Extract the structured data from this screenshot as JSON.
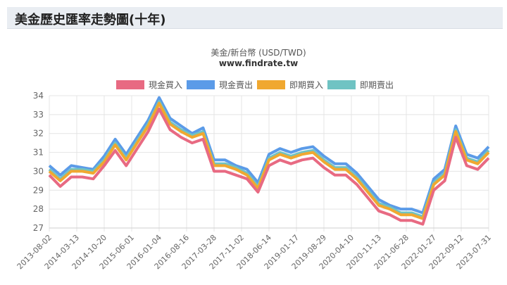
{
  "page": {
    "title": "美金歷史匯率走勢圖(十年)"
  },
  "chart_data": {
    "type": "line",
    "title": "美金/新台幣 (USD/TWD)",
    "subtitle": "www.findrate.tw",
    "ylim": [
      27,
      34
    ],
    "yticks": [
      27,
      28,
      29,
      30,
      31,
      32,
      33,
      34
    ],
    "x_tick_labels": [
      "2013-08-02",
      "2014-03-13",
      "2014-10-20",
      "2015-06-01",
      "2016-01-04",
      "2016-08-16",
      "2017-03-28",
      "2017-11-02",
      "2018-06-14",
      "2019-01-17",
      "2019-08-29",
      "2020-04-10",
      "2020-11-13",
      "2021-06-28",
      "2022-01-27",
      "2022-09-12",
      "2023-07-31"
    ],
    "x": [
      "2013-08",
      "2013-11",
      "2014-02",
      "2014-05",
      "2014-08",
      "2014-11",
      "2015-02",
      "2015-05",
      "2015-08",
      "2015-11",
      "2016-01",
      "2016-04",
      "2016-07",
      "2016-10",
      "2017-01",
      "2017-04",
      "2017-07",
      "2017-10",
      "2018-01",
      "2018-04",
      "2018-07",
      "2018-10",
      "2019-01",
      "2019-04",
      "2019-07",
      "2019-10",
      "2020-01",
      "2020-04",
      "2020-07",
      "2020-10",
      "2021-01",
      "2021-04",
      "2021-07",
      "2021-10",
      "2022-01",
      "2022-04",
      "2022-07",
      "2022-10",
      "2023-01",
      "2023-04",
      "2023-07"
    ],
    "series": [
      {
        "name": "現金買入",
        "color": "#e86a82",
        "values": [
          29.8,
          29.2,
          29.7,
          29.7,
          29.6,
          30.3,
          31.1,
          30.3,
          31.2,
          32.1,
          33.3,
          32.2,
          31.8,
          31.5,
          31.7,
          30.0,
          30.0,
          29.8,
          29.6,
          28.9,
          30.3,
          30.6,
          30.4,
          30.6,
          30.7,
          30.2,
          29.8,
          29.8,
          29.3,
          28.6,
          27.9,
          27.7,
          27.4,
          27.4,
          27.2,
          29.0,
          29.5,
          31.8,
          30.3,
          30.1,
          30.7
        ]
      },
      {
        "name": "現金賣出",
        "color": "#5b9be8",
        "values": [
          30.3,
          29.8,
          30.3,
          30.2,
          30.1,
          30.8,
          31.7,
          30.9,
          31.8,
          32.7,
          33.9,
          32.8,
          32.4,
          32.0,
          32.3,
          30.6,
          30.6,
          30.3,
          30.1,
          29.4,
          30.9,
          31.2,
          31.0,
          31.2,
          31.3,
          30.8,
          30.4,
          30.4,
          29.9,
          29.2,
          28.5,
          28.2,
          28.0,
          28.0,
          27.8,
          29.6,
          30.1,
          32.4,
          30.9,
          30.7,
          31.3
        ]
      },
      {
        "name": "即期買入",
        "color": "#f0a830",
        "values": [
          30.0,
          29.5,
          30.0,
          30.0,
          29.9,
          30.5,
          31.4,
          30.6,
          31.5,
          32.4,
          33.6,
          32.5,
          32.1,
          31.8,
          32.0,
          30.3,
          30.3,
          30.1,
          29.8,
          29.1,
          30.6,
          30.9,
          30.7,
          30.9,
          31.0,
          30.5,
          30.1,
          30.1,
          29.6,
          28.9,
          28.2,
          28.0,
          27.7,
          27.7,
          27.5,
          29.3,
          29.8,
          32.1,
          30.6,
          30.4,
          31.0
        ]
      },
      {
        "name": "即期賣出",
        "color": "#6fc3c3",
        "values": [
          30.1,
          29.6,
          30.1,
          30.1,
          30.0,
          30.6,
          31.5,
          30.7,
          31.6,
          32.5,
          33.7,
          32.6,
          32.2,
          31.9,
          32.1,
          30.4,
          30.4,
          30.2,
          29.9,
          29.2,
          30.7,
          31.0,
          30.8,
          31.0,
          31.1,
          30.6,
          30.2,
          30.2,
          29.7,
          29.0,
          28.3,
          28.1,
          27.8,
          27.8,
          27.6,
          29.4,
          29.9,
          32.2,
          30.7,
          30.5,
          31.1
        ]
      }
    ]
  }
}
